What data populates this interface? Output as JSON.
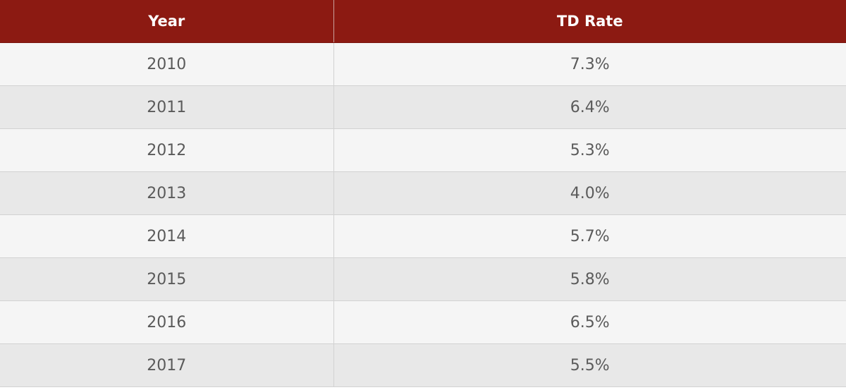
{
  "table": {
    "headers": [
      "Year",
      "TD Rate"
    ],
    "rows": [
      [
        "2010",
        "7.3%"
      ],
      [
        "2011",
        "6.4%"
      ],
      [
        "2012",
        "5.3%"
      ],
      [
        "2013",
        "4.0%"
      ],
      [
        "2014",
        "5.7%"
      ],
      [
        "2015",
        "5.8%"
      ],
      [
        "2016",
        "6.5%"
      ],
      [
        "2017",
        "5.5%"
      ]
    ]
  }
}
